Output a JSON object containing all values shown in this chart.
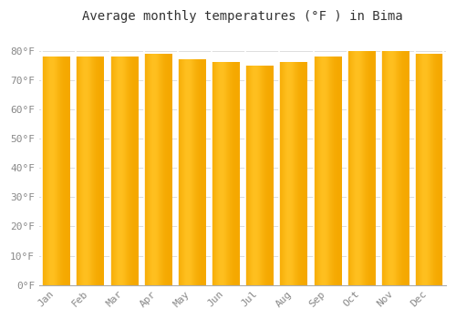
{
  "title": "Average monthly temperatures (°F ) in Bima",
  "months": [
    "Jan",
    "Feb",
    "Mar",
    "Apr",
    "May",
    "Jun",
    "Jul",
    "Aug",
    "Sep",
    "Oct",
    "Nov",
    "Dec"
  ],
  "values": [
    78,
    78,
    78,
    79,
    77,
    76,
    75,
    76,
    78,
    80,
    80,
    79
  ],
  "bar_color_left": "#F5A800",
  "bar_color_right": "#FFD040",
  "bar_color_mid": "#FFC020",
  "background_color": "#FFFFFF",
  "grid_color": "#DDDDDD",
  "ylim": [
    0,
    87
  ],
  "yticks": [
    0,
    10,
    20,
    30,
    40,
    50,
    60,
    70,
    80
  ],
  "ytick_labels": [
    "0°F",
    "10°F",
    "20°F",
    "30°F",
    "40°F",
    "50°F",
    "60°F",
    "70°F",
    "80°F"
  ],
  "title_fontsize": 10,
  "tick_fontsize": 8,
  "font_family": "monospace",
  "bar_width": 0.82
}
